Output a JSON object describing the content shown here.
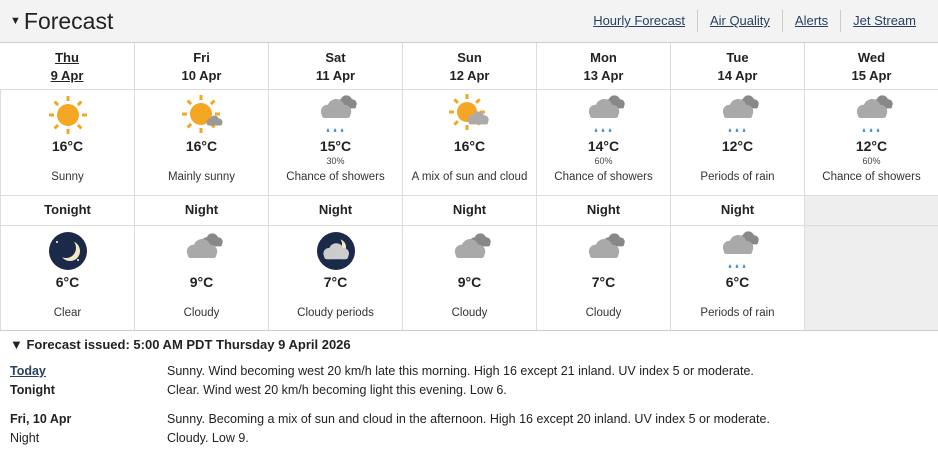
{
  "header": {
    "title": "Forecast",
    "links": [
      "Hourly Forecast",
      "Air Quality",
      "Alerts",
      "Jet Stream"
    ]
  },
  "days": [
    {
      "day": "Thu",
      "date": "9 Apr",
      "icon": "sun",
      "temp": "16°C",
      "pop": "",
      "desc": "Sunny",
      "today": true
    },
    {
      "day": "Fri",
      "date": "10 Apr",
      "icon": "sun-small-cloud",
      "temp": "16°C",
      "pop": "",
      "desc": "Mainly sunny"
    },
    {
      "day": "Sat",
      "date": "11 Apr",
      "icon": "cloud-rain",
      "temp": "15°C",
      "pop": "30%",
      "desc": "Chance of showers"
    },
    {
      "day": "Sun",
      "date": "12 Apr",
      "icon": "sun-cloud",
      "temp": "16°C",
      "pop": "",
      "desc": "A mix of sun and cloud"
    },
    {
      "day": "Mon",
      "date": "13 Apr",
      "icon": "cloud-rain",
      "temp": "14°C",
      "pop": "60%",
      "desc": "Chance of showers"
    },
    {
      "day": "Tue",
      "date": "14 Apr",
      "icon": "cloud-rain",
      "temp": "12°C",
      "pop": "",
      "desc": "Periods of rain"
    },
    {
      "day": "Wed",
      "date": "15 Apr",
      "icon": "cloud-rain",
      "temp": "12°C",
      "pop": "60%",
      "desc": "Chance of showers"
    }
  ],
  "nights": [
    {
      "label": "Tonight",
      "icon": "moon",
      "temp": "6°C",
      "desc": "Clear"
    },
    {
      "label": "Night",
      "icon": "cloud",
      "temp": "9°C",
      "desc": "Cloudy"
    },
    {
      "label": "Night",
      "icon": "moon-cloud",
      "temp": "7°C",
      "desc": "Cloudy periods"
    },
    {
      "label": "Night",
      "icon": "cloud",
      "temp": "9°C",
      "desc": "Cloudy"
    },
    {
      "label": "Night",
      "icon": "cloud",
      "temp": "7°C",
      "desc": "Cloudy"
    },
    {
      "label": "Night",
      "icon": "cloud-rain",
      "temp": "6°C",
      "desc": "Periods of rain"
    }
  ],
  "details": {
    "issued": "Forecast issued: 5:00 AM PDT Thursday 9 April 2026",
    "rows": [
      {
        "k": "Today",
        "v": "Sunny. Wind becoming west 20 km/h late this morning. High 16 except 21 inland. UV index 5 or moderate."
      },
      {
        "k": "Tonight",
        "v": "Clear. Wind west 20 km/h becoming light this evening. Low 6."
      },
      {
        "k": "Fri, 10 Apr",
        "v": "Sunny. Becoming a mix of sun and cloud in the afternoon. High 16 except 20 inland. UV index 5 or moderate."
      },
      {
        "k": "Night",
        "v": "Cloudy. Low 9."
      }
    ]
  },
  "colors": {
    "sun": "#f5a623",
    "cloud": "#a9a9a9",
    "rain": "#3a8fd8",
    "moon_bg": "#1c2a4a"
  }
}
